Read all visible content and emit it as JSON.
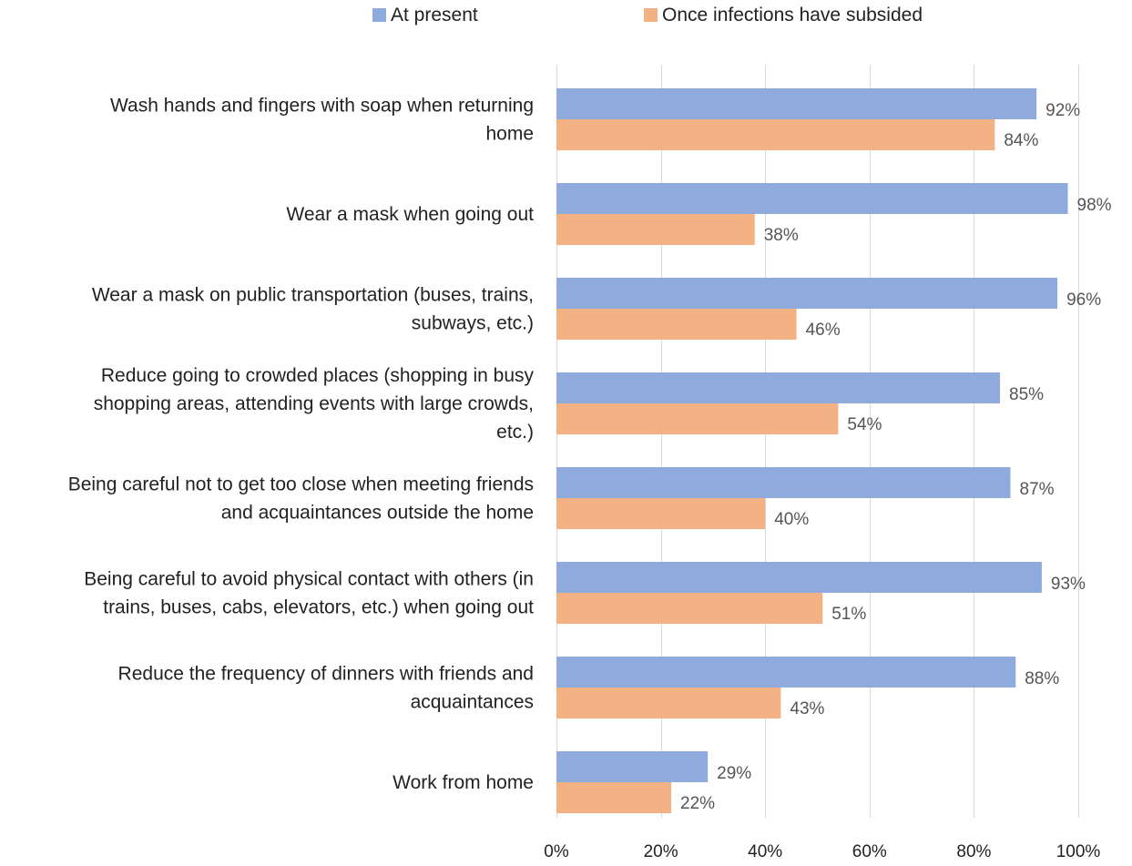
{
  "chart_data": {
    "type": "bar",
    "orientation": "horizontal",
    "title": "",
    "xlabel": "",
    "ylabel": "",
    "categories": [
      "Wash hands and fingers with soap when returning home",
      "Wear a mask when going out",
      "Wear a mask on public transportation (buses, trains, subways, etc.)",
      "Reduce going to crowded places (shopping in busy shopping areas, attending events with large crowds, etc.)",
      "Being careful not to get too close when meeting friends and acquaintances outside the home",
      "Being careful to avoid physical contact with others (in trains, buses, cabs, elevators, etc.) when going out",
      "Reduce the frequency of dinners with friends and acquaintances",
      "Work from home"
    ],
    "category_label_lines": [
      [
        "Wash hands and fingers with soap when returning",
        "home"
      ],
      [
        "Wear a mask when going out"
      ],
      [
        "Wear a mask on public transportation (buses, trains,",
        "subways, etc.)"
      ],
      [
        "Reduce going to crowded places (shopping in busy",
        "shopping areas, attending events with large crowds,",
        "etc.)"
      ],
      [
        "Being careful not to get too close when meeting friends",
        "and acquaintances outside the home"
      ],
      [
        "Being careful to avoid physical contact with others (in",
        "trains, buses, cabs, elevators, etc.) when going out"
      ],
      [
        "Reduce the frequency of dinners with friends and",
        "acquaintances"
      ],
      [
        "Work from home"
      ]
    ],
    "series": [
      {
        "name": "At present",
        "color": "#8faadc",
        "values": [
          92,
          98,
          96,
          85,
          87,
          93,
          88,
          29
        ],
        "labels": [
          "92%",
          "98%",
          "96%",
          "85%",
          "87%",
          "93%",
          "88%",
          "29%"
        ]
      },
      {
        "name": "Once infections have subsided",
        "color": "#f4b183",
        "values": [
          84,
          38,
          46,
          54,
          40,
          51,
          43,
          22
        ],
        "labels": [
          "84%",
          "38%",
          "46%",
          "54%",
          "40%",
          "51%",
          "43%",
          "22%"
        ]
      }
    ],
    "xlim": [
      0,
      100
    ],
    "xticks": [
      0,
      20,
      40,
      60,
      80,
      100
    ],
    "xtick_labels": [
      "0%",
      "20%",
      "40%",
      "60%",
      "80%",
      "100%"
    ],
    "grid": "vertical",
    "legend": "top-center"
  }
}
